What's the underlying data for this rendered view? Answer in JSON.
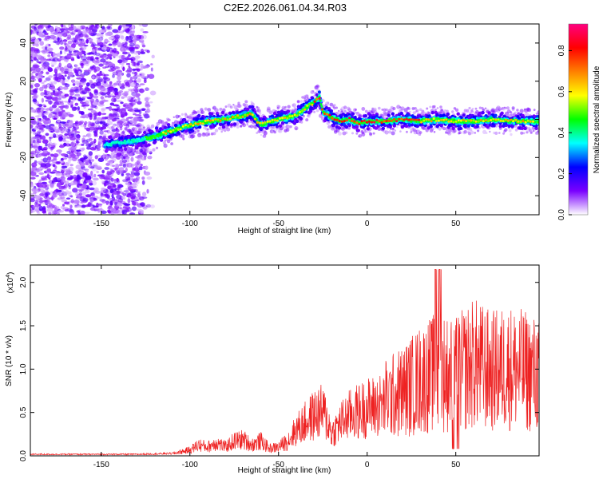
{
  "title": "C2E2.2026.061.04.34.R03",
  "chart_data": [
    {
      "type": "heatmap",
      "xlabel": "Height of straight line (km)",
      "ylabel": "Frequency (Hz)",
      "xlim": [
        -190,
        97
      ],
      "ylim": [
        -50,
        50
      ],
      "xticks": [
        -150,
        -100,
        -50,
        0,
        50
      ],
      "yticks": [
        -40,
        -20,
        0,
        20,
        40
      ],
      "ridge": {
        "x": [
          -145,
          -130,
          -120,
          -110,
          -100,
          -90,
          -80,
          -70,
          -65,
          -60,
          -55,
          -50,
          -45,
          -40,
          -35,
          -30,
          -27,
          -25,
          -20,
          -15,
          -10,
          -5,
          0,
          10,
          20,
          30,
          40,
          50,
          60,
          70,
          80,
          90,
          97
        ],
        "y": [
          -13,
          -11,
          -9,
          -6,
          -3,
          -1,
          0,
          2,
          3,
          -3,
          -1,
          0,
          1,
          2,
          6,
          9,
          12,
          4,
          1,
          -1,
          0,
          -2,
          -1,
          -1,
          0,
          -1,
          0,
          -1,
          -1,
          0,
          -1,
          -1,
          -1
        ]
      },
      "colorbar": {
        "label": "Normalized spectral amplitude",
        "range": [
          0.0,
          0.93
        ],
        "ticks": [
          "0.0",
          "0.2",
          "0.4",
          "0.6",
          "0.8"
        ],
        "colors": [
          "#ffffff",
          "#7a00ff",
          "#0000ff",
          "#00ffff",
          "#00ff00",
          "#ffff00",
          "#ff8000",
          "#ff0000",
          "#ff0080"
        ]
      }
    },
    {
      "type": "line",
      "xlabel": "Height of straight line (km)",
      "ylabel": "SNR (10 * v/v)",
      "scale_label": "(x10",
      "scale_exp": "4",
      "scale_close": ")",
      "xlim": [
        -190,
        97
      ],
      "ylim": [
        0,
        2.2
      ],
      "xticks": [
        -150,
        -100,
        -50,
        0,
        50
      ],
      "yticks": [
        "0.0",
        "0.5",
        "1.0",
        "1.5",
        "2.0"
      ],
      "color": "#ee2222",
      "envelope": {
        "x": [
          -190,
          -130,
          -110,
          -100,
          -95,
          -90,
          -85,
          -80,
          -75,
          -70,
          -65,
          -60,
          -55,
          -50,
          -45,
          -40,
          -35,
          -30,
          -25,
          -22,
          -20,
          -15,
          -10,
          -5,
          0,
          10,
          20,
          30,
          40,
          50,
          60,
          70,
          80,
          90,
          97
        ],
        "y": [
          0.02,
          0.02,
          0.03,
          0.08,
          0.15,
          0.12,
          0.18,
          0.12,
          0.2,
          0.22,
          0.15,
          0.2,
          0.1,
          0.12,
          0.2,
          0.35,
          0.45,
          0.55,
          0.6,
          0.45,
          0.3,
          0.45,
          0.55,
          0.6,
          0.65,
          0.7,
          0.8,
          0.95,
          1.05,
          1.0,
          1.15,
          1.05,
          1.1,
          1.05,
          1.0
        ]
      }
    }
  ]
}
